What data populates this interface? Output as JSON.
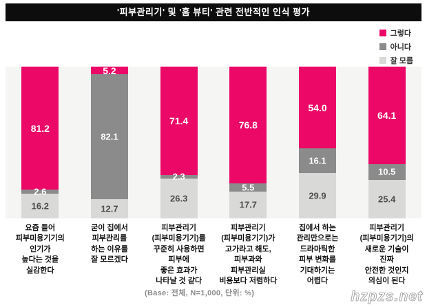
{
  "title": "'피부관리기' 및 '홈 뷰티' 관련 전반적인 인식 평가",
  "legend": {
    "items": [
      {
        "label": "그렇다",
        "color": "#eb0867"
      },
      {
        "label": "아니다",
        "color": "#8b8b8b"
      },
      {
        "label": "잘 모름",
        "color": "#d9d9d7"
      }
    ]
  },
  "footer": "(Base: 전체, N=1,000, 단위: %)",
  "watermark": "hzpzs.net",
  "chart_data": {
    "type": "bar",
    "stacked": true,
    "percent_total": 100,
    "unit": "%",
    "legend_position": "top-right",
    "categories": [
      "요즘 들어\n피부미용기기의\n인기가\n높다는 것을\n실감한다",
      "굳이 집에서\n피부관리를\n하는 이유를\n잘 모르겠다",
      "피부관리기\n(피부미용기기)를\n꾸준히 사용하면\n피부에\n좋은 효과가\n나타날 것 같다",
      "피부관리기\n(피부미용기기)가\n고가라고 해도,\n피부과와\n피부관리실\n비용보다 저렴하다",
      "집에서 하는\n관리만으로는\n드라마틱한\n피부 변화를\n기대하기는\n어렵다",
      "피부관리기\n(피부미용기기)의\n새로운 기술이\n진짜\n안전한 것인지\n의심이 된다"
    ],
    "series": [
      {
        "name": "그렇다",
        "color": "#eb0867",
        "values": [
          81.2,
          5.2,
          71.4,
          76.8,
          54.0,
          64.1
        ]
      },
      {
        "name": "아니다",
        "color": "#8b8b8b",
        "values": [
          2.6,
          82.1,
          2.3,
          5.5,
          16.1,
          10.5
        ]
      },
      {
        "name": "잘 모름",
        "color": "#d9d9d7",
        "values": [
          16.2,
          12.7,
          26.3,
          17.7,
          29.9,
          25.4
        ]
      }
    ],
    "title": "'피부관리기' 및 '홈 뷰티' 관련 전반적인 인식 평가",
    "base_note": "(Base: 전체, N=1,000, 단위: %)"
  }
}
